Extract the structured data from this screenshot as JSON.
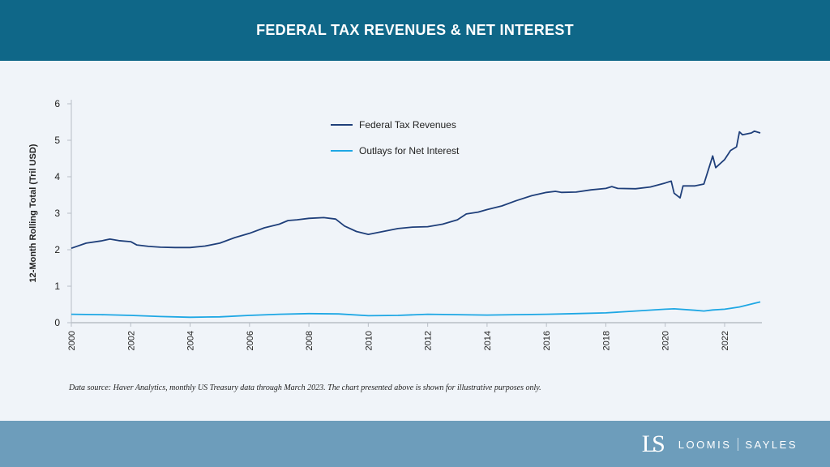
{
  "header": {
    "title": "FEDERAL TAX REVENUES & NET INTEREST"
  },
  "source": "Data source: Haver Analytics, monthly US Treasury data through March 2023. The chart presented above is shown for illustrative purposes only.",
  "logo": {
    "text_left": "LOOMIS",
    "text_right": "SAYLES",
    "mark": "LS"
  },
  "colors": {
    "header": "#0f6788",
    "footer": "#6d9dbb",
    "revenues": "#1f3f7a",
    "interest": "#1ea7e4"
  },
  "chart_data": {
    "type": "line",
    "title": "",
    "xlabel": "",
    "ylabel": "12-Month Rolling Total (Tril USD)",
    "xlim": [
      2000,
      2023.25
    ],
    "ylim": [
      0,
      6
    ],
    "yticks": [
      "0",
      "1",
      "2",
      "3",
      "4",
      "5",
      "6"
    ],
    "xticks": [
      "2000",
      "2002",
      "2004",
      "2006",
      "2008",
      "2010",
      "2012",
      "2014",
      "2016",
      "2018",
      "2020",
      "2022"
    ],
    "grid": false,
    "legend": "top-center",
    "series": [
      {
        "name": "Federal Tax Revenues",
        "x": [
          2000,
          2000.5,
          2001,
          2001.3,
          2001.6,
          2002,
          2002.2,
          2002.6,
          2003,
          2003.5,
          2004,
          2004.5,
          2005,
          2005.5,
          2006,
          2006.5,
          2007,
          2007.3,
          2007.6,
          2008,
          2008.5,
          2008.9,
          2009.2,
          2009.6,
          2010,
          2010.5,
          2011,
          2011.5,
          2012,
          2012.5,
          2013,
          2013.3,
          2013.7,
          2014,
          2014.5,
          2015,
          2015.5,
          2016,
          2016.3,
          2016.5,
          2017,
          2017.5,
          2018,
          2018.2,
          2018.4,
          2019,
          2019.5,
          2020,
          2020.2,
          2020.3,
          2020.5,
          2020.6,
          2021,
          2021.3,
          2021.6,
          2021.7,
          2022,
          2022.2,
          2022.4,
          2022.5,
          2022.6,
          2022.9,
          2023,
          2023.2
        ],
        "y": [
          2.04,
          2.18,
          2.24,
          2.29,
          2.25,
          2.22,
          2.13,
          2.09,
          2.07,
          2.06,
          2.06,
          2.1,
          2.18,
          2.33,
          2.45,
          2.6,
          2.7,
          2.8,
          2.82,
          2.86,
          2.88,
          2.84,
          2.65,
          2.5,
          2.42,
          2.5,
          2.58,
          2.62,
          2.63,
          2.7,
          2.82,
          2.98,
          3.03,
          3.1,
          3.2,
          3.35,
          3.48,
          3.57,
          3.6,
          3.57,
          3.58,
          3.64,
          3.68,
          3.73,
          3.68,
          3.67,
          3.72,
          3.83,
          3.88,
          3.55,
          3.42,
          3.75,
          3.75,
          3.8,
          4.57,
          4.25,
          4.47,
          4.72,
          4.82,
          5.23,
          5.15,
          5.2,
          5.25,
          5.2
        ]
      },
      {
        "name": "Outlays for Net Interest",
        "x": [
          2000,
          2001,
          2002,
          2003,
          2004,
          2005,
          2006,
          2007,
          2008,
          2009,
          2010,
          2011,
          2012,
          2013,
          2014,
          2015,
          2016,
          2017,
          2018,
          2019,
          2020,
          2020.3,
          2021,
          2021.3,
          2021.6,
          2022,
          2022.5,
          2023,
          2023.2
        ],
        "y": [
          0.23,
          0.22,
          0.2,
          0.17,
          0.15,
          0.16,
          0.2,
          0.23,
          0.25,
          0.24,
          0.19,
          0.2,
          0.23,
          0.22,
          0.21,
          0.22,
          0.23,
          0.25,
          0.27,
          0.32,
          0.37,
          0.38,
          0.34,
          0.32,
          0.35,
          0.37,
          0.43,
          0.53,
          0.57
        ]
      }
    ]
  }
}
